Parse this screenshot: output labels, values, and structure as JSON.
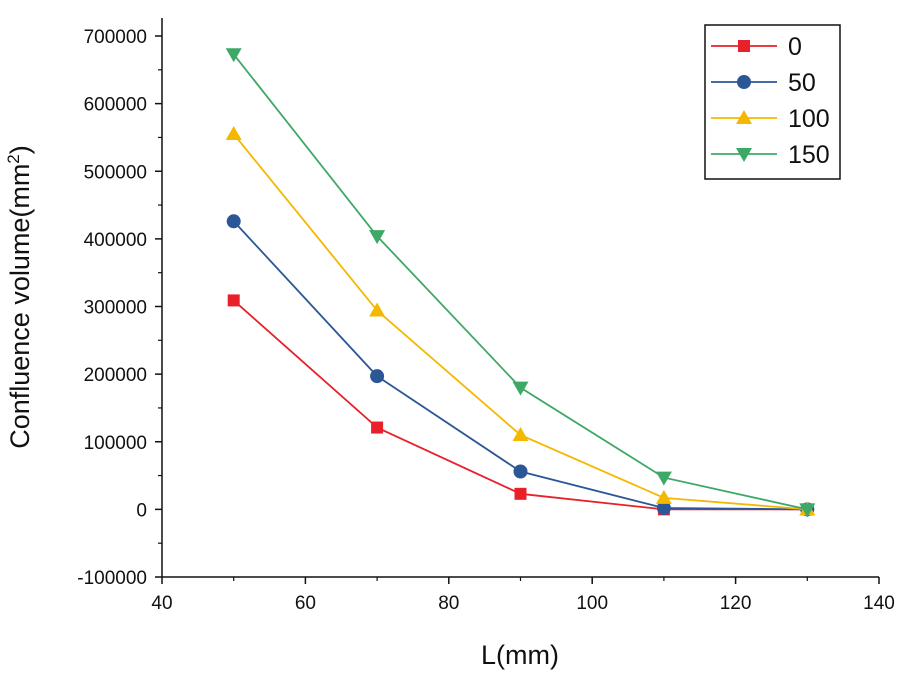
{
  "chart_data": {
    "type": "line",
    "title": "",
    "xlabel": "L(mm)",
    "ylabel": "Confluence volume(mm",
    "ylabel_sup": "2",
    "ylabel_suffix": ")",
    "xlim": [
      40,
      140
    ],
    "ylim": [
      -100000,
      700000
    ],
    "xticks": [
      40,
      60,
      80,
      100,
      120,
      140
    ],
    "yticks": [
      -100000,
      0,
      100000,
      200000,
      300000,
      400000,
      500000,
      600000,
      700000
    ],
    "xtick_labels": [
      "40",
      "60",
      "80",
      "100",
      "120",
      "140"
    ],
    "ytick_labels": [
      "-100000",
      "0",
      "100000",
      "200000",
      "300000",
      "400000",
      "500000",
      "600000",
      "700000"
    ],
    "grid": false,
    "legend_position": "top-right",
    "x": [
      50,
      70,
      90,
      110,
      130
    ],
    "series": [
      {
        "name": "0",
        "marker": "square",
        "color": "#e8202a",
        "values": [
          309000,
          121000,
          23000,
          0,
          0
        ]
      },
      {
        "name": "50",
        "marker": "circle",
        "color": "#2b5797",
        "values": [
          426000,
          197000,
          56000,
          2000,
          0
        ]
      },
      {
        "name": "100",
        "marker": "triangle-up",
        "color": "#f5b800",
        "values": [
          555000,
          294000,
          110000,
          17000,
          0
        ]
      },
      {
        "name": "150",
        "marker": "triangle-down",
        "color": "#3ea866",
        "values": [
          673000,
          404000,
          180000,
          47000,
          0
        ]
      }
    ]
  }
}
